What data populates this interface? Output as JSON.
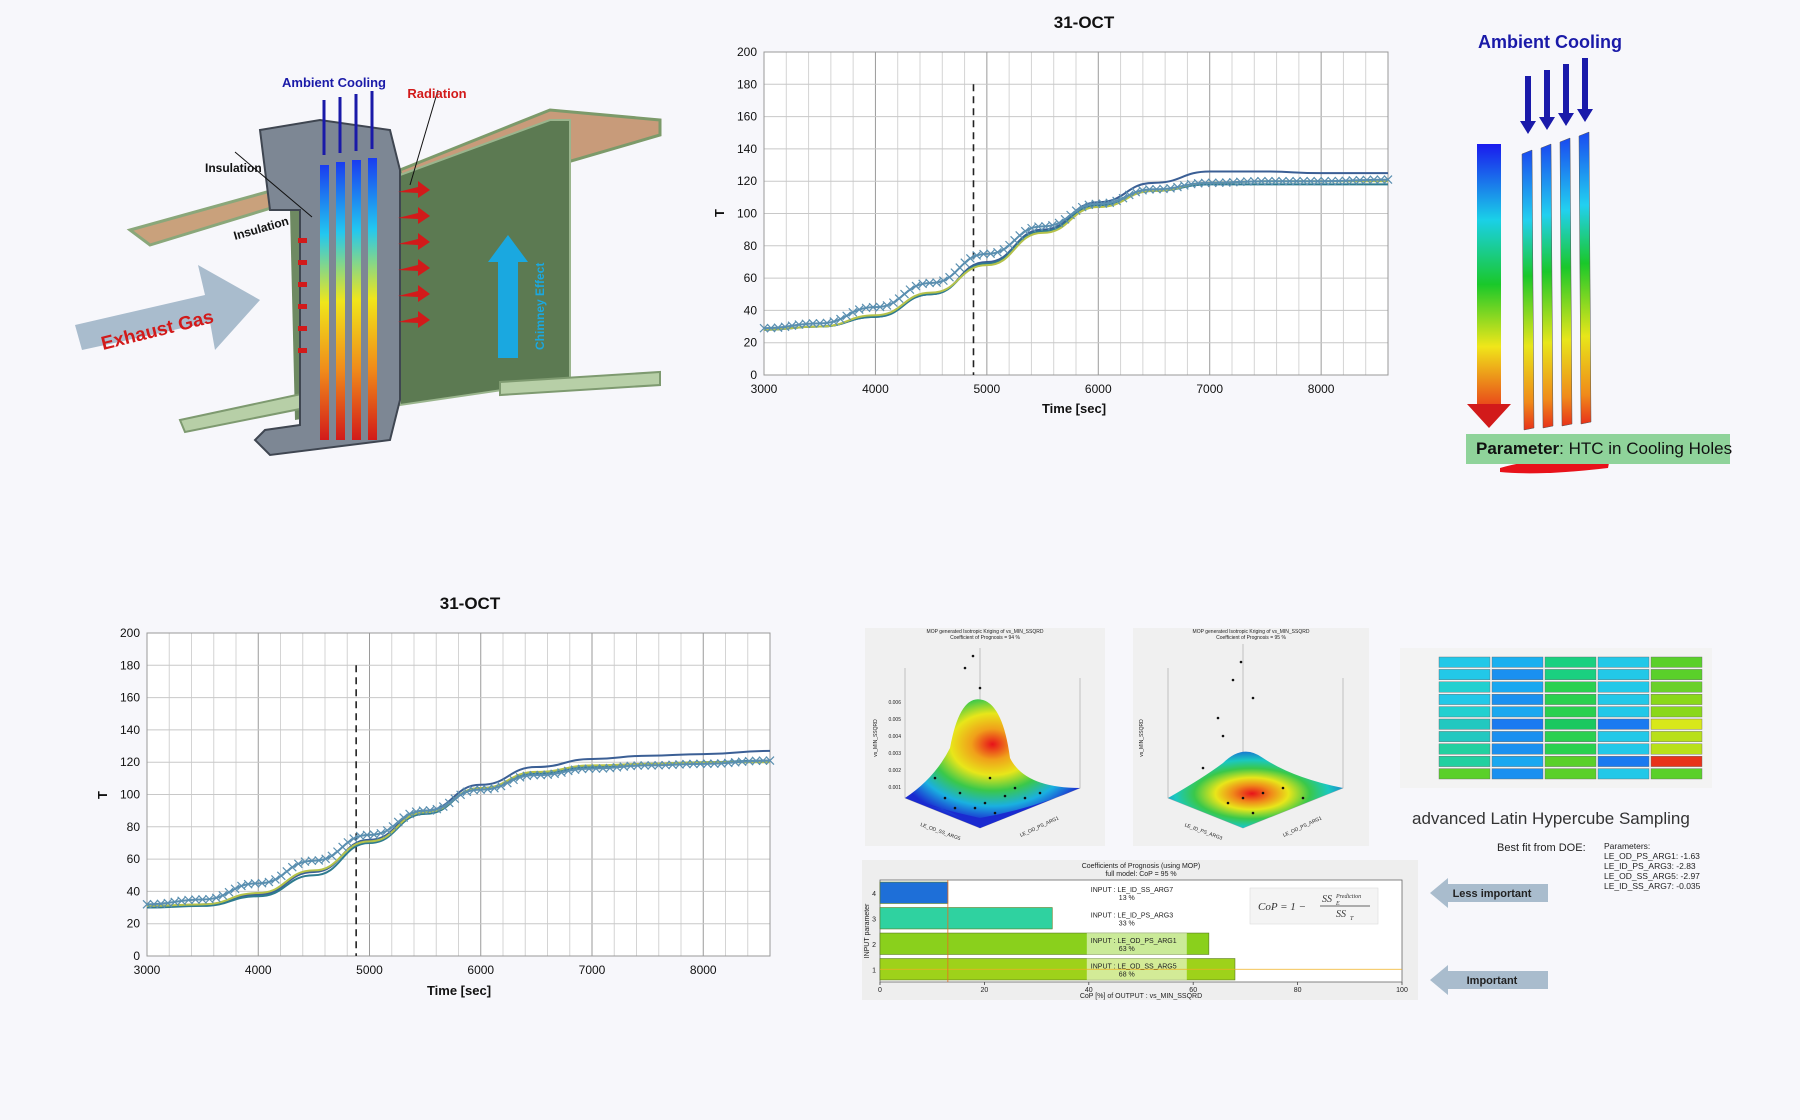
{
  "diagram": {
    "ambient_cooling": "Ambient Cooling",
    "radiation": "Radiation",
    "insulation_callout": "Insulation",
    "insulation_panel": "Insulation",
    "exhaust_gas": "Exhaust Gas",
    "chimney_effect": "Chimney Effect"
  },
  "colorbar_panel": {
    "title": "Ambient Cooling",
    "parameter_label": "Parameter",
    "parameter_value": ": HTC in Cooling Holes"
  },
  "chart_data": [
    {
      "type": "line",
      "title": "31-OCT",
      "xlabel": "Time [sec]",
      "ylabel": "T",
      "xlim": [
        3000,
        8600
      ],
      "ylim": [
        0,
        200
      ],
      "xticks": [
        3000,
        4000,
        5000,
        6000,
        7000,
        8000
      ],
      "yticks": [
        0,
        20,
        40,
        60,
        80,
        100,
        120,
        140,
        160,
        180,
        200
      ],
      "vline_x": 4880,
      "series": [
        {
          "color": "#3b5f95",
          "marker": "none",
          "points": [
            [
              3000,
              28
            ],
            [
              3500,
              30
            ],
            [
              4000,
              36
            ],
            [
              4500,
              50
            ],
            [
              5000,
              70
            ],
            [
              5500,
              90
            ],
            [
              6000,
              107
            ],
            [
              6500,
              119
            ],
            [
              7000,
              126
            ],
            [
              7500,
              126
            ],
            [
              8000,
              125
            ],
            [
              8600,
              125
            ]
          ]
        },
        {
          "color": "#2e7b8f",
          "marker": "none",
          "points": [
            [
              3000,
              28
            ],
            [
              3500,
              30
            ],
            [
              4000,
              36
            ],
            [
              4500,
              50
            ],
            [
              5000,
              69
            ],
            [
              5500,
              89
            ],
            [
              6000,
              105
            ],
            [
              6500,
              114
            ],
            [
              7000,
              118
            ],
            [
              7500,
              118
            ],
            [
              8000,
              118
            ],
            [
              8600,
              118
            ]
          ]
        },
        {
          "color": "#b5c24a",
          "marker": "none",
          "points": [
            [
              3000,
              28
            ],
            [
              3500,
              30
            ],
            [
              4000,
              37
            ],
            [
              4500,
              51
            ],
            [
              5000,
              68
            ],
            [
              5500,
              88
            ],
            [
              6000,
              104
            ],
            [
              6500,
              114
            ],
            [
              7000,
              119
            ],
            [
              7500,
              120
            ],
            [
              8000,
              120
            ],
            [
              8600,
              120
            ]
          ]
        },
        {
          "color": "#5a8fb0",
          "marker": "x",
          "points": [
            [
              3000,
              29
            ],
            [
              3500,
              32
            ],
            [
              4000,
              42
            ],
            [
              4500,
              57
            ],
            [
              5000,
              75
            ],
            [
              5500,
              92
            ],
            [
              6000,
              106
            ],
            [
              6500,
              115
            ],
            [
              7000,
              119
            ],
            [
              7500,
              120
            ],
            [
              8000,
              120
            ],
            [
              8600,
              121
            ]
          ]
        }
      ]
    },
    {
      "type": "line",
      "title": "31-OCT",
      "xlabel": "Time [sec]",
      "ylabel": "T",
      "xlim": [
        3000,
        8600
      ],
      "ylim": [
        0,
        200
      ],
      "xticks": [
        3000,
        4000,
        5000,
        6000,
        7000,
        8000
      ],
      "yticks": [
        0,
        20,
        40,
        60,
        80,
        100,
        120,
        140,
        160,
        180,
        200
      ],
      "vline_x": 4880,
      "series": [
        {
          "color": "#3b5f95",
          "marker": "none",
          "points": [
            [
              3000,
              30
            ],
            [
              3500,
              32
            ],
            [
              4000,
              38
            ],
            [
              4500,
              52
            ],
            [
              5000,
              72
            ],
            [
              5500,
              90
            ],
            [
              6000,
              106
            ],
            [
              6500,
              117
            ],
            [
              7000,
              122
            ],
            [
              7500,
              124
            ],
            [
              8000,
              125
            ],
            [
              8600,
              127
            ]
          ]
        },
        {
          "color": "#2e7b8f",
          "marker": "none",
          "points": [
            [
              3000,
              30
            ],
            [
              3500,
              31
            ],
            [
              4000,
              37
            ],
            [
              4500,
              50
            ],
            [
              5000,
              70
            ],
            [
              5500,
              88
            ],
            [
              6000,
              104
            ],
            [
              6500,
              113
            ],
            [
              7000,
              117
            ],
            [
              7500,
              119
            ],
            [
              8000,
              120
            ],
            [
              8600,
              121
            ]
          ]
        },
        {
          "color": "#b5c24a",
          "marker": "none",
          "points": [
            [
              3000,
              31
            ],
            [
              3500,
              32
            ],
            [
              4000,
              39
            ],
            [
              4500,
              53
            ],
            [
              5000,
              71
            ],
            [
              5500,
              89
            ],
            [
              6000,
              104
            ],
            [
              6500,
              114
            ],
            [
              7000,
              118
            ],
            [
              7500,
              119
            ],
            [
              8000,
              120
            ],
            [
              8600,
              120
            ]
          ]
        },
        {
          "color": "#5a8fb0",
          "marker": "x",
          "points": [
            [
              3000,
              32
            ],
            [
              3500,
              35
            ],
            [
              4000,
              45
            ],
            [
              4500,
              59
            ],
            [
              5000,
              75
            ],
            [
              5500,
              90
            ],
            [
              6000,
              103
            ],
            [
              6500,
              112
            ],
            [
              7000,
              116
            ],
            [
              7500,
              118
            ],
            [
              8000,
              119
            ],
            [
              8600,
              121
            ]
          ]
        }
      ]
    },
    {
      "type": "bar",
      "orientation": "horizontal",
      "title": "Coefficients of Prognosis (using MOP)",
      "subtitle": "full model: CoP = 95 %",
      "xlabel": "CoP [%] of OUTPUT : vs_MIN_SSQRD",
      "ylabel": "INPUT parameter",
      "xlim": [
        0,
        100
      ],
      "xticks": [
        0,
        20,
        40,
        60,
        80,
        100
      ],
      "categories": [
        "1",
        "2",
        "3",
        "4"
      ],
      "labels": [
        "INPUT : LE_OD_SS_ARG5",
        "INPUT : LE_OD_PS_ARG1",
        "INPUT : LE_ID_PS_ARG3",
        "INPUT : LE_ID_SS_ARG7"
      ],
      "values": [
        68,
        63,
        33,
        13
      ],
      "value_labels": [
        "68 %",
        "63 %",
        "33 %",
        "13 %"
      ],
      "colors": [
        "#9ed21a",
        "#8ad01c",
        "#2fd2a0",
        "#1e6fd8"
      ]
    }
  ],
  "doe": {
    "heading": "advanced Latin Hypercube Sampling",
    "best_fit_label": "Best fit from DOE:",
    "parameters_header": "Parameters:",
    "parameters": [
      "LE_OD_PS_ARG1: -1.63",
      "LE_ID_PS_ARG3: -2.83",
      "LE_OD_SS_ARG5: -2.97",
      "LE_ID_SS_ARG7: -0.035"
    ]
  },
  "cop_panel": {
    "less_important": "Less important",
    "important": "Important",
    "formula_lhs": "CoP = 1 −",
    "formula_num": "SS",
    "formula_num_sup": "Prediction",
    "formula_num_sub": "E",
    "formula_den": "SS",
    "formula_den_sub": "T"
  },
  "surfaces": {
    "left_title": "MOP generated Isotropic Kriging of vs_MIN_SSQRD",
    "left_subtitle": "Coefficient of Prognosis = 94 %",
    "right_title": "MOP generated Isotropic Kriging of vs_MIN_SSQRD",
    "right_subtitle": "Coefficient of Prognosis = 95 %",
    "z_label": "vs_MIN_SSQRD",
    "z_ticks": [
      "0.006",
      "0.005",
      "0.004",
      "0.003",
      "0.002",
      "0.001"
    ],
    "left_axis_a": "LE_OD_SS_ARG5",
    "left_axis_b": "LE_OD_PS_ARG1",
    "right_axis_a": "LE_ID_PS_ARG3",
    "right_axis_b": "LE_OD_PS_ARG1"
  },
  "colors": {
    "ambient_blue": "#1a1aa8",
    "radiation_red": "#d21a1a",
    "chimney_cyan": "#1aa8e0",
    "param_box": "#8fd39a",
    "arrow_grey": "#a9bccd"
  }
}
